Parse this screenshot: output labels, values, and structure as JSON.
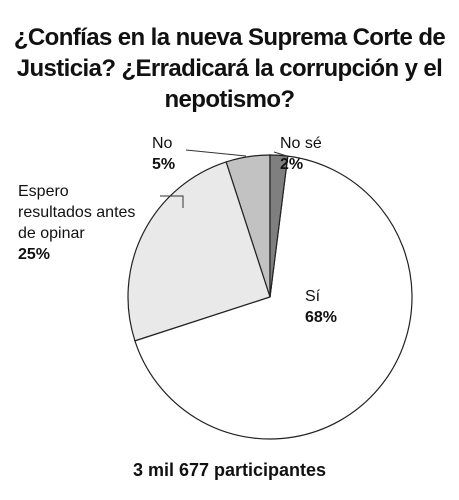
{
  "chart_data": {
    "type": "pie",
    "title": "¿Confías en la nueva Suprema Corte de Justicia? ¿Erradicará la corrupción y el nepotismo?",
    "categories": [
      "No sé",
      "Sí",
      "Espero resultados antes de opinar",
      "No"
    ],
    "values": [
      2,
      68,
      25,
      5
    ],
    "value_labels": [
      "2%",
      "68%",
      "25%",
      "5%"
    ],
    "colors": [
      "#7f7f7f",
      "#ffffff",
      "#e9e9e9",
      "#c2c2c2"
    ],
    "footer": "3 mil 677 participantes"
  }
}
